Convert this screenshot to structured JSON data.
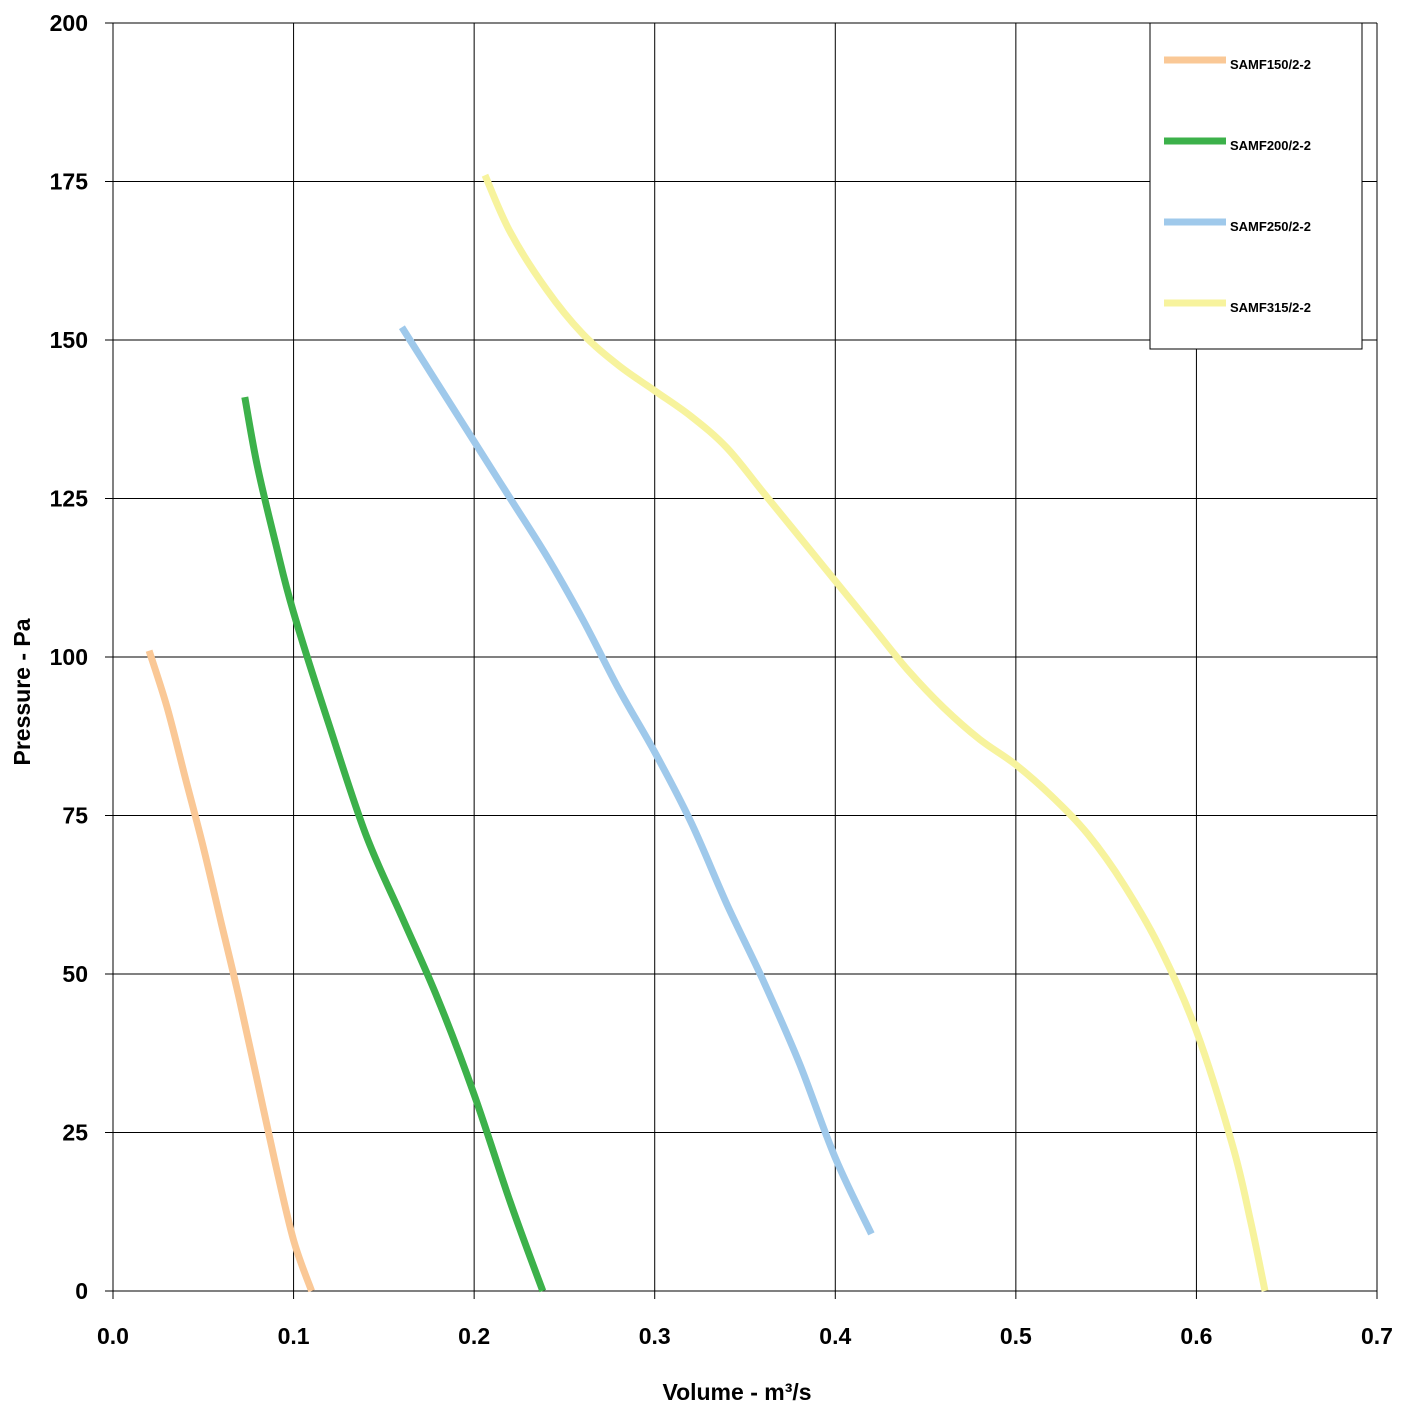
{
  "chart_data": {
    "type": "line",
    "title": "",
    "xlabel": "Volume - m³/s",
    "ylabel": "Pressure - Pa",
    "xlim": [
      0,
      0.7
    ],
    "ylim": [
      0,
      200
    ],
    "x_ticks": [
      "0.0",
      "0.1",
      "0.2",
      "0.3",
      "0.4",
      "0.5",
      "0.6",
      "0.7"
    ],
    "y_ticks": [
      "0",
      "25",
      "50",
      "75",
      "100",
      "125",
      "150",
      "175",
      "200"
    ],
    "grid": true,
    "legend_position": "top-right",
    "series": [
      {
        "name": "SAMF150/2-2",
        "color": "#FAC896",
        "points": [
          [
            0.02,
            101
          ],
          [
            0.03,
            92
          ],
          [
            0.04,
            81
          ],
          [
            0.05,
            70
          ],
          [
            0.06,
            58
          ],
          [
            0.07,
            46
          ],
          [
            0.08,
            33
          ],
          [
            0.09,
            20
          ],
          [
            0.1,
            8
          ],
          [
            0.11,
            0
          ]
        ]
      },
      {
        "name": "SAMF200/2-2",
        "color": "#3CB14A",
        "points": [
          [
            0.073,
            141
          ],
          [
            0.08,
            130
          ],
          [
            0.09,
            118
          ],
          [
            0.1,
            107
          ],
          [
            0.12,
            89
          ],
          [
            0.14,
            72
          ],
          [
            0.16,
            59
          ],
          [
            0.18,
            46
          ],
          [
            0.2,
            31
          ],
          [
            0.22,
            14
          ],
          [
            0.238,
            0
          ]
        ]
      },
      {
        "name": "SAMF250/2-2",
        "color": "#9FC9EB",
        "points": [
          [
            0.16,
            152
          ],
          [
            0.18,
            143
          ],
          [
            0.2,
            134
          ],
          [
            0.22,
            125
          ],
          [
            0.24,
            116
          ],
          [
            0.26,
            106
          ],
          [
            0.28,
            95
          ],
          [
            0.3,
            85
          ],
          [
            0.32,
            74
          ],
          [
            0.34,
            61
          ],
          [
            0.36,
            49
          ],
          [
            0.38,
            36
          ],
          [
            0.4,
            21
          ],
          [
            0.42,
            9
          ]
        ]
      },
      {
        "name": "SAMF315/2-2",
        "color": "#F7F39D",
        "points": [
          [
            0.206,
            176
          ],
          [
            0.22,
            167
          ],
          [
            0.24,
            158
          ],
          [
            0.26,
            151
          ],
          [
            0.28,
            146
          ],
          [
            0.3,
            142
          ],
          [
            0.32,
            138
          ],
          [
            0.34,
            133
          ],
          [
            0.36,
            126
          ],
          [
            0.38,
            119
          ],
          [
            0.4,
            112
          ],
          [
            0.42,
            105
          ],
          [
            0.44,
            98
          ],
          [
            0.46,
            92
          ],
          [
            0.48,
            87
          ],
          [
            0.5,
            83
          ],
          [
            0.52,
            78
          ],
          [
            0.54,
            72
          ],
          [
            0.56,
            64
          ],
          [
            0.58,
            54
          ],
          [
            0.6,
            41
          ],
          [
            0.62,
            23
          ],
          [
            0.63,
            11
          ],
          [
            0.638,
            0
          ]
        ]
      }
    ]
  }
}
